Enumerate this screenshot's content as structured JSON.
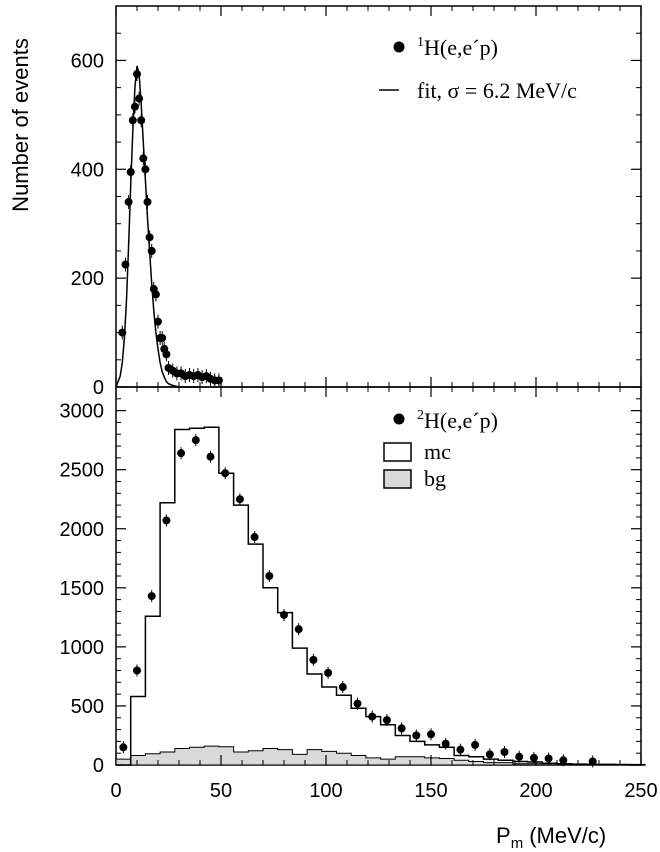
{
  "chart_data": [
    {
      "type": "scatter",
      "panel": "top",
      "ylabel": "Number of events",
      "xlim": [
        0,
        250
      ],
      "ylim": [
        0,
        700
      ],
      "yticks": [
        0,
        200,
        400,
        600
      ],
      "legend": [
        {
          "prefix": "1",
          "text": "H(e,e´p)",
          "marker": "dot"
        },
        {
          "text": "fit, σ = 6.2 MeV/c",
          "marker": "line"
        }
      ],
      "legend_placement": "top-right",
      "series": [
        {
          "kind": "points",
          "x": [
            3,
            4.5,
            6,
            7,
            8,
            9,
            10,
            11,
            12,
            13,
            14,
            15,
            16,
            17,
            18,
            19,
            20,
            21,
            22,
            23,
            24,
            25,
            27,
            29,
            31,
            33,
            35,
            37,
            39,
            41,
            43,
            45,
            47,
            49
          ],
          "y": [
            100,
            225,
            340,
            395,
            490,
            515,
            575,
            530,
            490,
            420,
            400,
            340,
            275,
            250,
            180,
            170,
            120,
            90,
            90,
            70,
            60,
            35,
            30,
            25,
            25,
            20,
            22,
            20,
            22,
            18,
            20,
            15,
            12,
            12
          ]
        },
        {
          "kind": "fit",
          "x": [
            0,
            2,
            3,
            4,
            5,
            6,
            7,
            8,
            9,
            10,
            11,
            12,
            13,
            14,
            15,
            16,
            17,
            18,
            19,
            20,
            21,
            22,
            23,
            24,
            25,
            27,
            29,
            31,
            33,
            35,
            40
          ],
          "y": [
            0,
            20,
            45,
            90,
            160,
            260,
            370,
            470,
            550,
            590,
            575,
            520,
            450,
            380,
            310,
            250,
            190,
            140,
            100,
            70,
            45,
            28,
            18,
            10,
            6,
            3,
            1,
            0,
            0,
            0,
            0
          ]
        }
      ]
    },
    {
      "type": "scatter",
      "panel": "bottom",
      "xlabel": "P",
      "xlabel_sub": "m",
      "xlabel_units": "(MeV/c)",
      "xlim": [
        0,
        250
      ],
      "ylim": [
        0,
        3200
      ],
      "xticks": [
        0,
        50,
        100,
        150,
        200,
        250
      ],
      "yticks": [
        0,
        500,
        1000,
        1500,
        2000,
        2500,
        3000
      ],
      "legend": [
        {
          "prefix": "2",
          "text": "H(e,e´p)",
          "marker": "dot"
        },
        {
          "text": "mc",
          "marker": "open-box"
        },
        {
          "text": "bg",
          "marker": "filled-box"
        }
      ],
      "legend_placement": "top-right",
      "series": [
        {
          "kind": "points",
          "x": [
            3.5,
            10,
            17,
            24,
            31,
            38,
            45,
            52,
            59,
            66,
            73,
            80,
            87,
            94,
            101,
            108,
            115,
            122,
            129,
            136,
            143,
            150,
            157,
            164,
            171,
            178,
            185,
            192,
            199,
            206,
            213,
            227
          ],
          "y": [
            150,
            800,
            1430,
            2070,
            2640,
            2750,
            2610,
            2470,
            2250,
            1930,
            1600,
            1270,
            1150,
            890,
            780,
            660,
            520,
            410,
            380,
            310,
            250,
            260,
            180,
            130,
            170,
            90,
            110,
            70,
            60,
            55,
            40,
            30
          ]
        },
        {
          "kind": "mc",
          "edges": [
            0,
            7,
            14,
            21,
            28,
            35,
            42,
            49,
            56,
            63,
            70,
            77,
            84,
            91,
            98,
            105,
            112,
            119,
            126,
            133,
            140,
            147,
            154,
            161,
            168,
            175,
            182,
            189,
            196,
            203,
            210,
            217,
            224,
            231,
            238,
            245,
            252
          ],
          "values": [
            0,
            580,
            1260,
            2220,
            2840,
            2850,
            2860,
            2470,
            2200,
            1870,
            1500,
            1290,
            990,
            770,
            660,
            590,
            480,
            410,
            340,
            250,
            200,
            170,
            150,
            80,
            70,
            50,
            40,
            30,
            25,
            15,
            10,
            8,
            5,
            5,
            3,
            0
          ]
        },
        {
          "kind": "bg",
          "edges": [
            0,
            7,
            14,
            21,
            28,
            35,
            42,
            49,
            56,
            63,
            70,
            77,
            84,
            91,
            98,
            105,
            112,
            119,
            126,
            133,
            140,
            147,
            154,
            161,
            168,
            175,
            182,
            189,
            196,
            203,
            210,
            217,
            224,
            231,
            238,
            245,
            252
          ],
          "values": [
            50,
            80,
            95,
            110,
            140,
            150,
            160,
            155,
            110,
            120,
            140,
            130,
            90,
            130,
            115,
            100,
            80,
            60,
            50,
            70,
            70,
            60,
            55,
            40,
            30,
            20,
            20,
            10,
            10,
            10,
            5,
            5,
            5,
            5,
            5,
            5
          ]
        }
      ]
    }
  ]
}
